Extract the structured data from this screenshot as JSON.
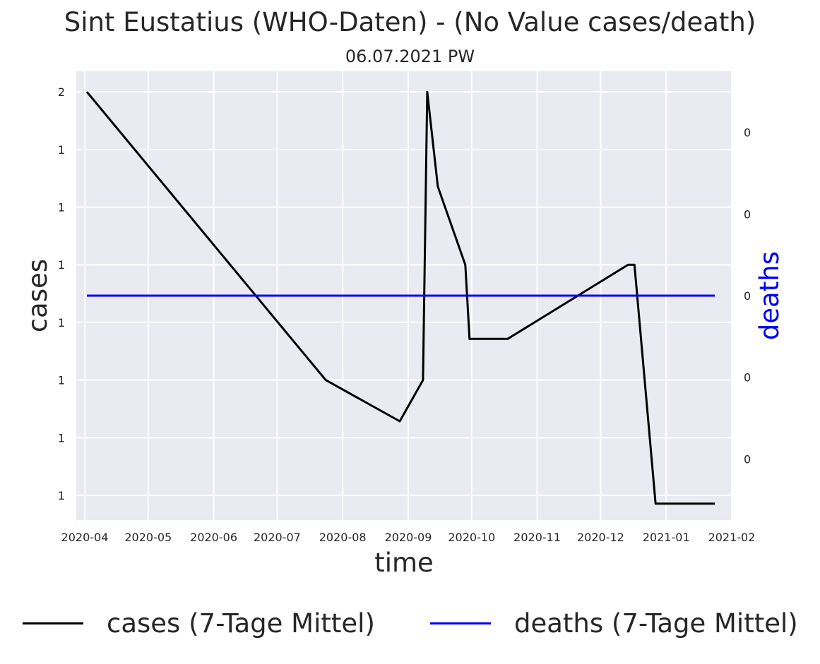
{
  "chart_data": {
    "type": "line",
    "title": "Sint Eustatius (WHO-Daten) - (No Value cases/death)",
    "subtitle": "06.07.2021 PW",
    "xlabel": "time",
    "ylabel_left": "cases",
    "ylabel_right": "deaths",
    "x_ticks": [
      "2020-04",
      "2020-05",
      "2020-06",
      "2020-07",
      "2020-08",
      "2020-09",
      "2020-10",
      "2020-11",
      "2020-12",
      "2021-01",
      "2021-02"
    ],
    "xlim": [
      "2020-03-28",
      "2021-02-01"
    ],
    "y_left_tick_labels": [
      "2",
      "1",
      "1",
      "1",
      "1",
      "1",
      "1",
      "1"
    ],
    "y_left_ticks": [
      2.0,
      1.86,
      1.72,
      1.58,
      1.44,
      1.3,
      1.16,
      1.02
    ],
    "y_left_lim": [
      0.96,
      2.05
    ],
    "y_right_tick_labels": [
      "0",
      "0",
      "0",
      "0",
      "0"
    ],
    "y_right_ticks": [
      0.04,
      0.02,
      0.0,
      -0.02,
      -0.04
    ],
    "y_right_lim": [
      -0.055,
      0.055
    ],
    "grid": true,
    "legend_position": "bottom",
    "colors": {
      "background": "#eaeaf2",
      "grid": "#ffffff",
      "cases": "#000000",
      "deaths": "#0000ff"
    },
    "series": [
      {
        "name": "cases (7-Tage Mittel)",
        "axis": "left",
        "color": "#000000",
        "x": [
          "2020-04-02",
          "2020-07-24",
          "2020-08-28",
          "2020-09-08",
          "2020-09-10",
          "2020-09-15",
          "2020-09-28",
          "2020-09-30",
          "2020-10-18",
          "2020-12-14",
          "2020-12-17",
          "2020-12-27",
          "2021-01-24"
        ],
        "y": [
          2.0,
          1.3,
          1.2,
          1.3,
          2.0,
          1.77,
          1.58,
          1.4,
          1.4,
          1.58,
          1.58,
          1.0,
          1.0
        ]
      },
      {
        "name": "deaths (7-Tage Mittel)",
        "axis": "right",
        "color": "#0000ff",
        "x": [
          "2020-04-02",
          "2021-01-24"
        ],
        "y": [
          0.0,
          0.0
        ]
      }
    ]
  }
}
